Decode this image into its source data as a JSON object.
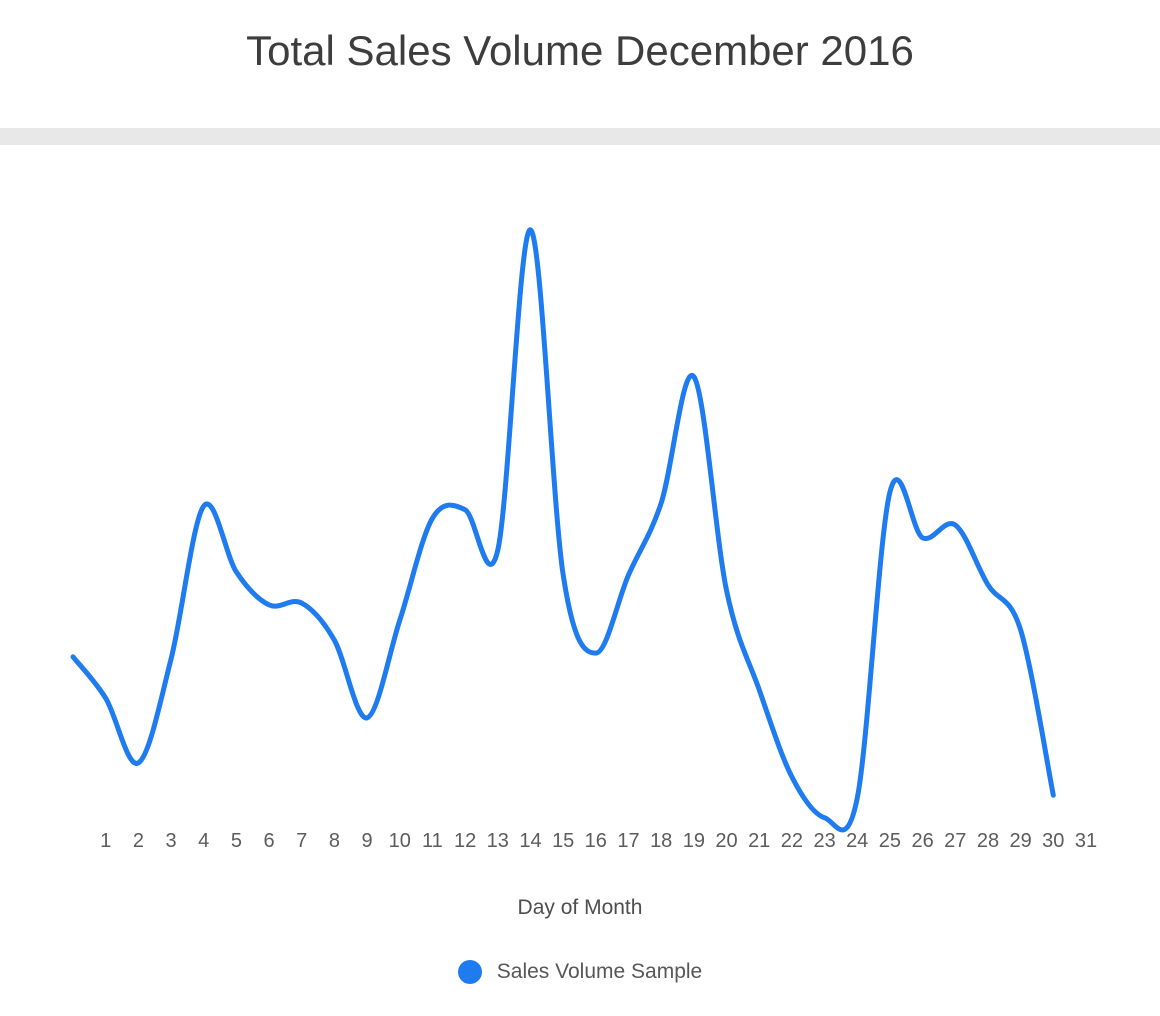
{
  "header": {
    "title": "Total Sales Volume December 2016"
  },
  "colors": {
    "series_blue": "#1e7bf0",
    "divider_gray": "#e8e8e8",
    "title_text": "#3d3d3d",
    "axis_text": "#5c5c5c"
  },
  "chart_data": {
    "type": "line",
    "title": "Total Sales Volume December 2016",
    "xlabel": "Day of Month",
    "ylabel": "",
    "grid": false,
    "y_axis_visible": false,
    "y_render_range": [
      0,
      100
    ],
    "smooth": true,
    "line_width": 5,
    "legend_position": "bottom",
    "x_tick_labels": [
      "1",
      "2",
      "3",
      "4",
      "5",
      "6",
      "7",
      "8",
      "9",
      "10",
      "11",
      "12",
      "13",
      "14",
      "15",
      "16",
      "17",
      "18",
      "19",
      "20",
      "21",
      "22",
      "23",
      "24",
      "25",
      "26",
      "27",
      "28",
      "29",
      "30",
      "31"
    ],
    "series": [
      {
        "name": "Sales Volume Sample",
        "color": "#1e7bf0",
        "x": [
          0,
          1,
          2,
          3,
          4,
          5,
          6,
          7,
          8,
          9,
          10,
          11,
          12,
          13,
          14,
          15,
          16,
          17,
          18,
          19,
          20,
          21,
          22,
          23,
          24,
          25,
          26,
          27,
          28,
          29,
          30
        ],
        "values": [
          28.4,
          21.6,
          11,
          28,
          53.1,
          42.3,
          36.9,
          37.2,
          31.1,
          18.4,
          34.4,
          51.1,
          52.5,
          45.9,
          98.4,
          41.8,
          29,
          41.8,
          53.6,
          74.3,
          39.3,
          23,
          8.7,
          2,
          5.2,
          55.4,
          47.9,
          50,
          40.2,
          32.8,
          5.7
        ]
      }
    ]
  }
}
